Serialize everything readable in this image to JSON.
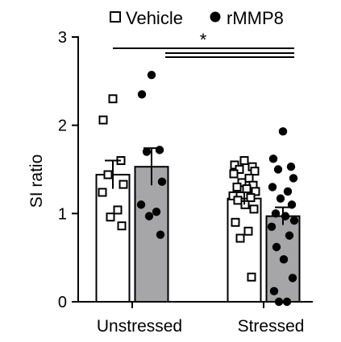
{
  "chart_data": {
    "type": "bar",
    "categories": [
      "Unstressed",
      "Stressed"
    ],
    "xlabel": "",
    "ylabel": "SI ratio",
    "ylim": [
      0,
      3
    ],
    "yticks": [
      0,
      1,
      2,
      3
    ],
    "grid": false,
    "legend_placement": "top",
    "series": [
      {
        "name": "Vehicle",
        "marker": "open-square",
        "bar_fill": "#ffffff",
        "values": [
          1.44,
          1.17
        ],
        "sem": [
          0.16,
          0.07
        ],
        "points": [
          [
            2.3,
            2.06,
            1.6,
            1.44,
            1.33,
            1.24,
            1.04,
            0.96,
            0.86
          ],
          [
            1.6,
            1.55,
            1.53,
            1.5,
            1.48,
            1.45,
            1.4,
            1.35,
            1.32,
            1.3,
            1.28,
            1.25,
            1.2,
            1.18,
            1.15,
            1.1,
            1.05,
            0.9,
            0.8,
            0.72,
            0.28
          ]
        ]
      },
      {
        "name": "rMMP8",
        "marker": "filled-circle",
        "bar_fill": "#a6a6a8",
        "values": [
          1.53,
          0.97
        ],
        "sem": [
          0.21,
          0.1
        ],
        "points": [
          [
            2.57,
            2.35,
            1.72,
            1.7,
            1.36,
            1.1,
            1.02,
            0.97,
            0.76
          ],
          [
            1.93,
            1.62,
            1.53,
            1.5,
            1.4,
            1.3,
            1.25,
            1.17,
            1.1,
            1.0,
            0.97,
            0.92,
            0.85,
            0.75,
            0.62,
            0.48,
            0.27,
            0.12,
            0.0,
            0.0
          ]
        ]
      }
    ],
    "significance": [
      {
        "label": "*",
        "comparison": "Unstressed vs Stressed"
      },
      {
        "label": "",
        "comparison": "Stressed Vehicle vs rMMP8"
      },
      {
        "label": "",
        "comparison": "Stressed Vehicle vs rMMP8"
      }
    ]
  },
  "colors": {
    "axis": "#000000",
    "vehicle_bar": "#ffffff",
    "rmmp8_bar": "#a6a6a8",
    "marker": "#000000"
  }
}
